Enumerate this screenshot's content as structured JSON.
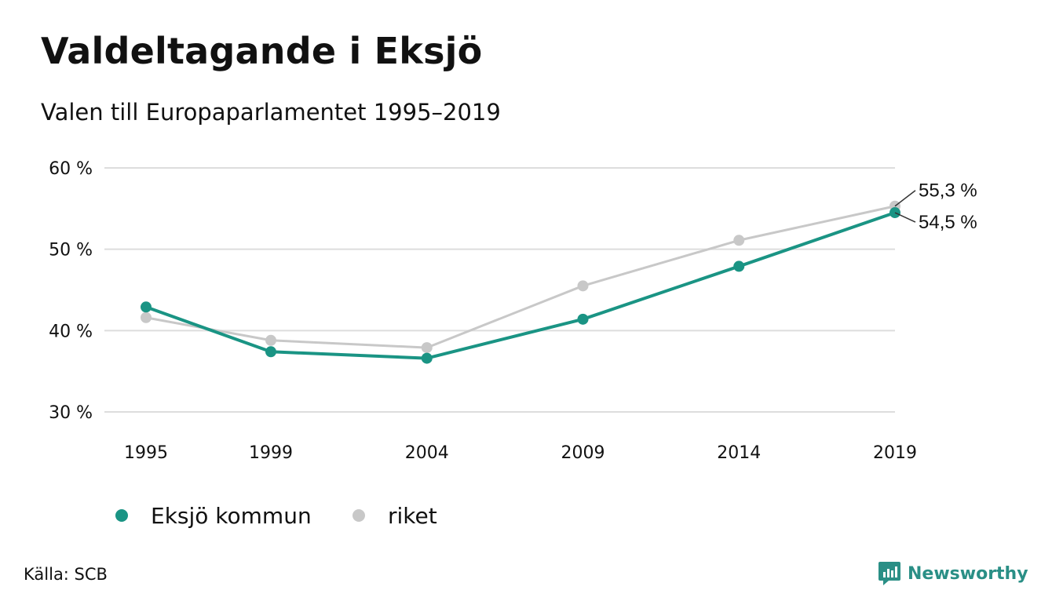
{
  "title": "Valdeltagande i Eksjö",
  "subtitle": "Valen till Europaparlamentet 1995–2019",
  "source": "Källa: SCB",
  "brand": {
    "name": "Newsworthy",
    "icon": "newsworthy-logo-icon",
    "color": "#2a8f86"
  },
  "chart_data": {
    "type": "line",
    "categories": [
      "1995",
      "1999",
      "2004",
      "2009",
      "2014",
      "2019"
    ],
    "x": [
      1995,
      1999,
      2004,
      2009,
      2014,
      2019
    ],
    "ylim": [
      30,
      60
    ],
    "yticks": [
      30,
      40,
      50,
      60
    ],
    "ytick_labels": [
      "30 %",
      "40 %",
      "50 %",
      "60 %"
    ],
    "grid": true,
    "legend_position": "bottom-left",
    "series": [
      {
        "name": "riket",
        "color": "#c8c8c8",
        "values": [
          41.6,
          38.8,
          37.9,
          45.5,
          51.1,
          55.3
        ],
        "end_label": "55,3 %"
      },
      {
        "name": "Eksjö kommun",
        "color": "#1a9484",
        "values": [
          42.9,
          37.4,
          36.6,
          41.4,
          47.9,
          54.5
        ],
        "end_label": "54,5 %"
      }
    ]
  }
}
